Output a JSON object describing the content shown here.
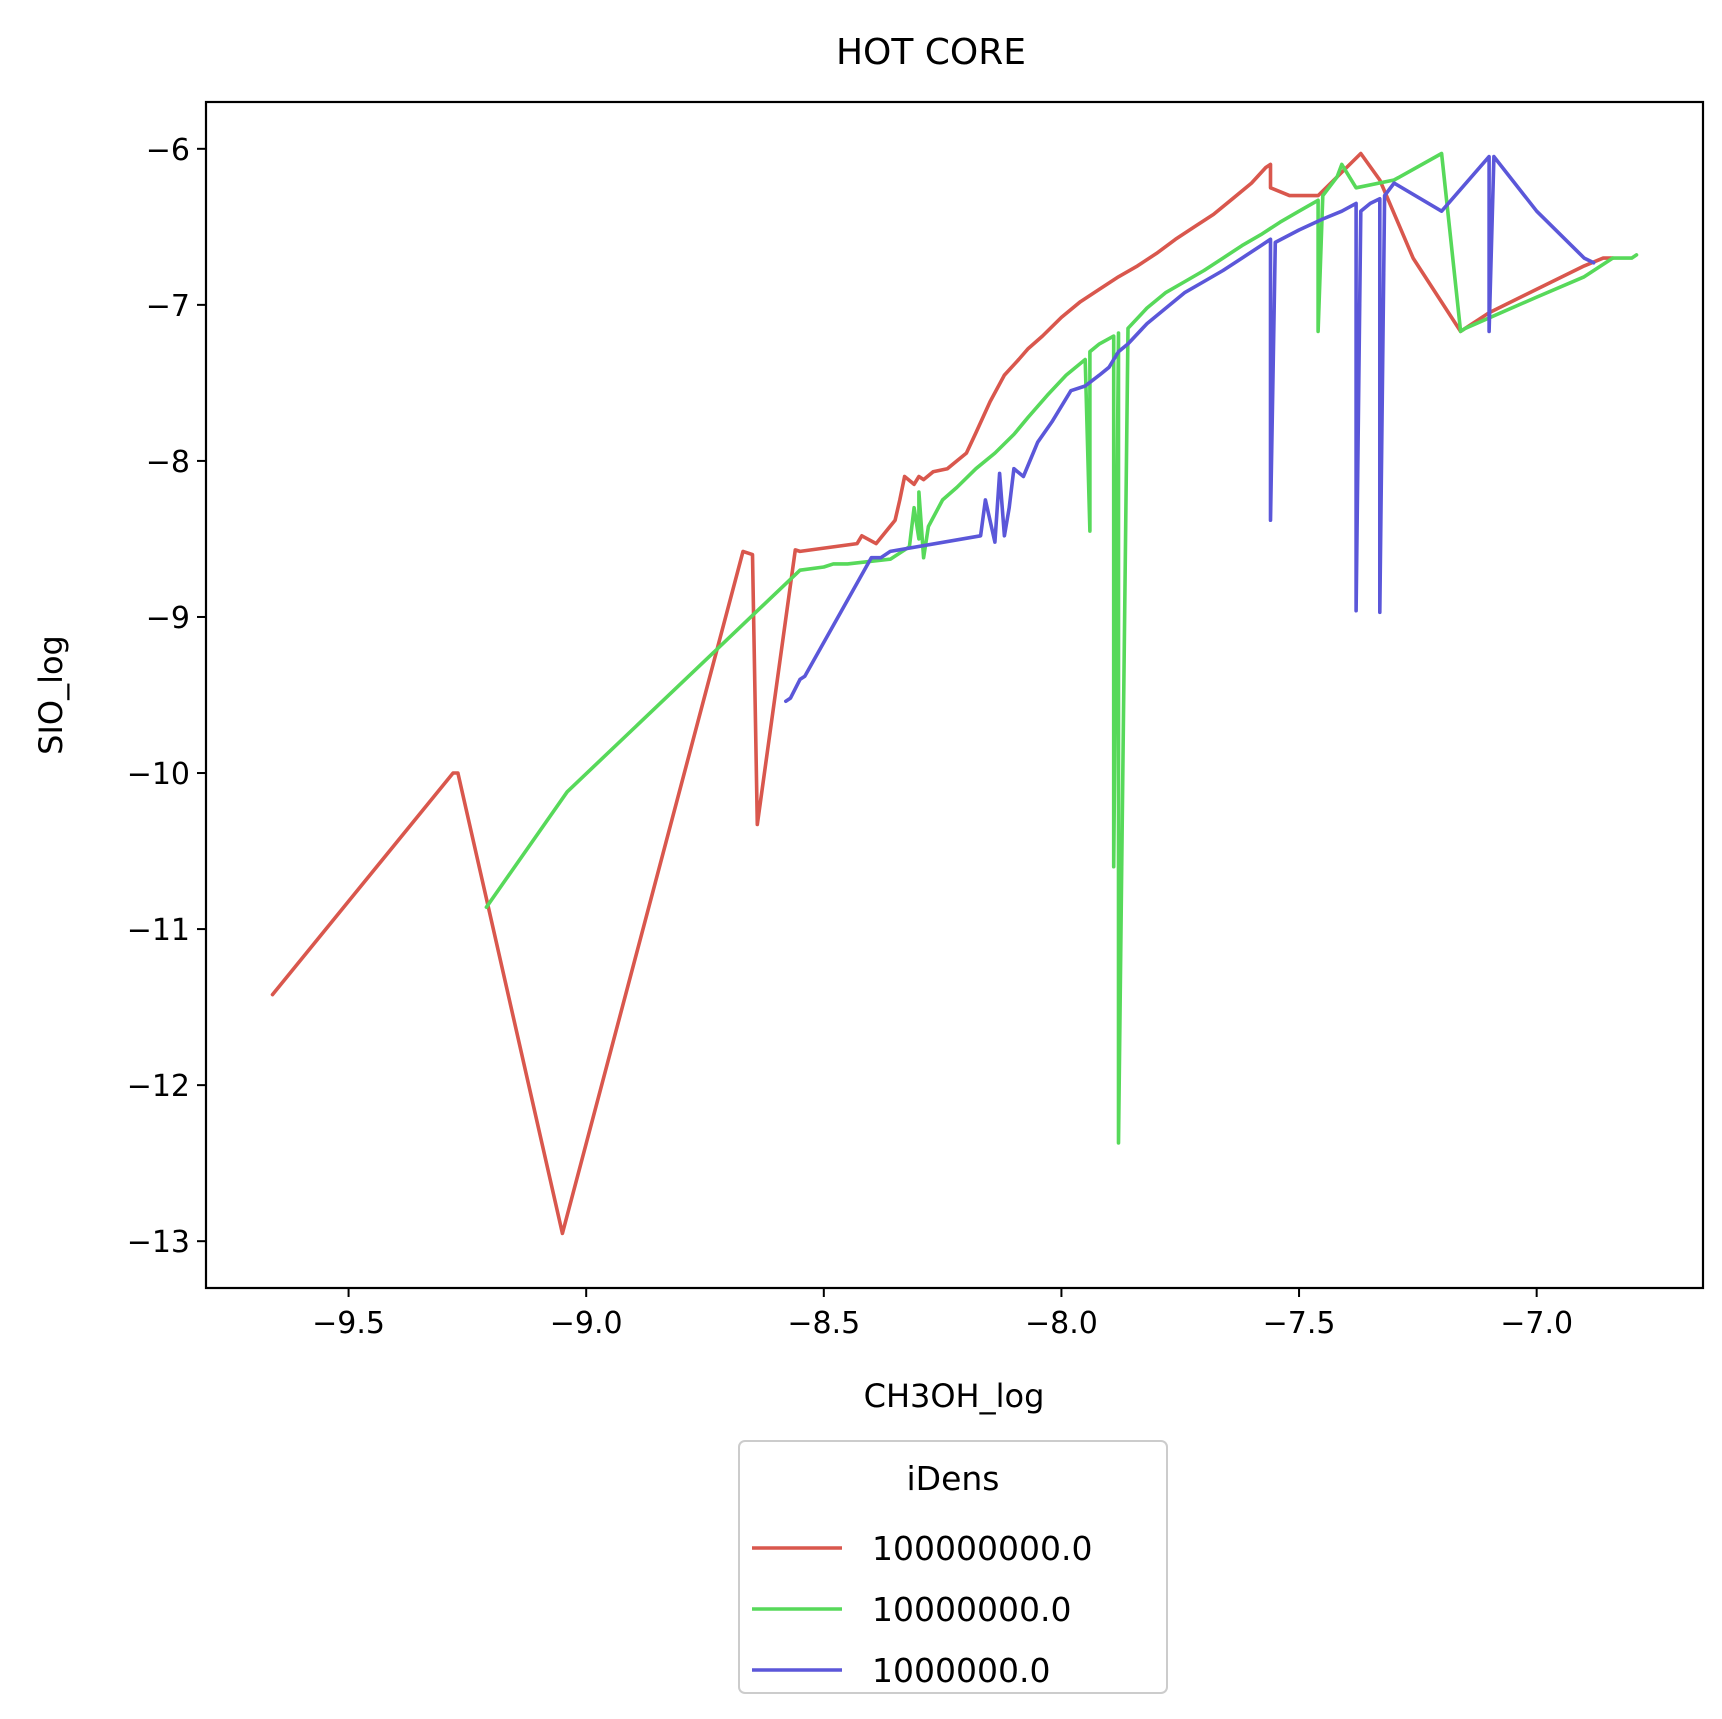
{
  "chart_data": {
    "type": "line",
    "title": "HOT CORE",
    "xlabel": "CH3OH_log",
    "ylabel": "SIO_log",
    "xlim": [
      -9.8,
      -6.65
    ],
    "ylim": [
      -13.3,
      -5.7
    ],
    "xticks": [
      -9.5,
      -9.0,
      -8.5,
      -8.0,
      -7.5,
      -7.0
    ],
    "xtick_labels": [
      "−9.5",
      "−9.0",
      "−8.5",
      "−8.0",
      "−7.5",
      "−7.0"
    ],
    "yticks": [
      -6,
      -7,
      -8,
      -9,
      -10,
      -11,
      -12,
      -13
    ],
    "ytick_labels": [
      "−6",
      "−7",
      "−8",
      "−9",
      "−10",
      "−11",
      "−12",
      "−13"
    ],
    "grid": false,
    "legend": {
      "title": "iDens",
      "placement": "below-center"
    },
    "series": [
      {
        "name": "100000000.0",
        "color": "#d9574d",
        "x": [
          -9.66,
          -9.28,
          -9.27,
          -9.05,
          -8.67,
          -8.65,
          -8.64,
          -8.56,
          -8.55,
          -8.43,
          -8.42,
          -8.39,
          -8.35,
          -8.34,
          -8.33,
          -8.31,
          -8.3,
          -8.29,
          -8.27,
          -8.24,
          -8.22,
          -8.2,
          -8.18,
          -8.15,
          -8.12,
          -8.09,
          -8.07,
          -8.04,
          -8.0,
          -7.96,
          -7.92,
          -7.88,
          -7.84,
          -7.8,
          -7.76,
          -7.72,
          -7.68,
          -7.64,
          -7.6,
          -7.57,
          -7.56,
          -7.56,
          -7.52,
          -7.46,
          -7.4,
          -7.37,
          -7.33,
          -7.26,
          -7.16,
          -7.1,
          -7.0,
          -6.9,
          -6.86,
          -6.84
        ],
        "y": [
          -11.42,
          -10.0,
          -10.0,
          -12.95,
          -8.58,
          -8.6,
          -10.33,
          -8.57,
          -8.58,
          -8.53,
          -8.48,
          -8.53,
          -8.38,
          -8.25,
          -8.1,
          -8.15,
          -8.1,
          -8.12,
          -8.07,
          -8.05,
          -8.0,
          -7.95,
          -7.82,
          -7.62,
          -7.45,
          -7.35,
          -7.28,
          -7.2,
          -7.08,
          -6.98,
          -6.9,
          -6.82,
          -6.75,
          -6.67,
          -6.58,
          -6.5,
          -6.42,
          -6.32,
          -6.22,
          -6.12,
          -6.1,
          -6.25,
          -6.3,
          -6.3,
          -6.12,
          -6.03,
          -6.2,
          -6.7,
          -7.17,
          -7.05,
          -6.9,
          -6.75,
          -6.7,
          -6.7
        ]
      },
      {
        "name": "10000000.0",
        "color": "#57d95a",
        "x": [
          -9.21,
          -9.04,
          -8.55,
          -8.5,
          -8.48,
          -8.45,
          -8.36,
          -8.32,
          -8.31,
          -8.3,
          -8.3,
          -8.29,
          -8.28,
          -8.25,
          -8.22,
          -8.18,
          -8.14,
          -8.1,
          -8.07,
          -8.03,
          -7.99,
          -7.95,
          -7.94,
          -7.94,
          -7.92,
          -7.89,
          -7.89,
          -7.88,
          -7.88,
          -7.86,
          -7.82,
          -7.78,
          -7.74,
          -7.7,
          -7.66,
          -7.62,
          -7.58,
          -7.54,
          -7.5,
          -7.46,
          -7.46,
          -7.45,
          -7.42,
          -7.41,
          -7.38,
          -7.3,
          -7.2,
          -7.16,
          -7.15,
          -7.0,
          -6.9,
          -6.84,
          -6.82,
          -6.8,
          -6.79
        ],
        "y": [
          -10.86,
          -10.12,
          -8.7,
          -8.68,
          -8.66,
          -8.66,
          -8.63,
          -8.55,
          -8.3,
          -8.5,
          -8.2,
          -8.62,
          -8.42,
          -8.25,
          -8.17,
          -8.05,
          -7.95,
          -7.83,
          -7.72,
          -7.58,
          -7.45,
          -7.35,
          -8.45,
          -7.3,
          -7.25,
          -7.2,
          -10.6,
          -7.18,
          -12.37,
          -7.15,
          -7.02,
          -6.92,
          -6.85,
          -6.78,
          -6.7,
          -6.62,
          -6.55,
          -6.47,
          -6.4,
          -6.33,
          -7.17,
          -6.3,
          -6.18,
          -6.1,
          -6.25,
          -6.2,
          -6.03,
          -7.17,
          -7.15,
          -6.95,
          -6.82,
          -6.7,
          -6.7,
          -6.7,
          -6.68
        ]
      },
      {
        "name": "1000000.0",
        "color": "#5b57d9",
        "x": [
          -8.58,
          -8.57,
          -8.55,
          -8.54,
          -8.4,
          -8.38,
          -8.36,
          -8.17,
          -8.16,
          -8.14,
          -8.13,
          -8.12,
          -8.11,
          -8.1,
          -8.08,
          -8.05,
          -8.02,
          -8.0,
          -7.98,
          -7.95,
          -7.92,
          -7.9,
          -7.88,
          -7.86,
          -7.82,
          -7.78,
          -7.74,
          -7.7,
          -7.66,
          -7.62,
          -7.58,
          -7.56,
          -7.56,
          -7.55,
          -7.5,
          -7.45,
          -7.41,
          -7.38,
          -7.38,
          -7.37,
          -7.35,
          -7.33,
          -7.33,
          -7.32,
          -7.3,
          -7.2,
          -7.1,
          -7.1,
          -7.09,
          -7.0,
          -6.9,
          -6.88
        ],
        "y": [
          -9.54,
          -9.52,
          -9.4,
          -9.38,
          -8.62,
          -8.62,
          -8.58,
          -8.48,
          -8.25,
          -8.52,
          -8.08,
          -8.48,
          -8.3,
          -8.05,
          -8.1,
          -7.88,
          -7.75,
          -7.65,
          -7.55,
          -7.52,
          -7.45,
          -7.4,
          -7.3,
          -7.25,
          -7.12,
          -7.02,
          -6.92,
          -6.85,
          -6.78,
          -6.7,
          -6.62,
          -6.58,
          -8.38,
          -6.6,
          -6.52,
          -6.45,
          -6.4,
          -6.35,
          -8.96,
          -6.4,
          -6.35,
          -6.32,
          -8.97,
          -6.3,
          -6.22,
          -6.4,
          -6.05,
          -7.17,
          -6.05,
          -6.4,
          -6.7,
          -6.73
        ]
      }
    ]
  }
}
